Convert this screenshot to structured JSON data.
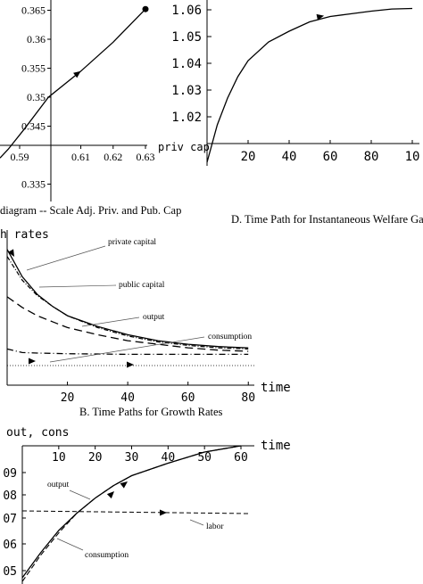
{
  "chart_data": [
    {
      "id": "scatter-top-left",
      "type": "line",
      "xlabel": "priv cap",
      "caption": "diagram -- Scale Adj. Priv. and Pub. Cap",
      "xticks": [
        "0.59",
        "0.61",
        "0.62",
        "0.63"
      ],
      "yticks": [
        "0.365",
        "0.36",
        "0.355",
        "0.35",
        "0.345",
        "0.335"
      ],
      "xlim": [
        0.585,
        0.63
      ],
      "ylim": [
        0.332,
        0.366
      ],
      "series": [
        {
          "x": [
            0.585,
            0.5875,
            0.5925,
            0.6,
            0.61,
            0.62,
            0.63
          ],
          "y": [
            0.3395,
            0.341,
            0.3445,
            0.35,
            0.3545,
            0.3595,
            0.3652
          ]
        }
      ],
      "color": "#000000"
    },
    {
      "id": "welfare-top-right",
      "type": "line",
      "caption": "D.  Time Path for Instantaneous Welfare Gai",
      "xticks": [
        "20",
        "40",
        "60",
        "80",
        "10"
      ],
      "yticks": [
        "1.06",
        "1.05",
        "1.04",
        "1.03",
        "1.02"
      ],
      "xlim": [
        0,
        100
      ],
      "ylim": [
        1.002,
        1.062
      ],
      "series": [
        {
          "x": [
            0,
            5,
            10,
            15,
            20,
            30,
            40,
            50,
            60,
            70,
            80,
            90,
            100
          ],
          "y": [
            1.003,
            1.017,
            1.027,
            1.035,
            1.041,
            1.048,
            1.052,
            1.0555,
            1.0575,
            1.0585,
            1.0595,
            1.0603,
            1.0605
          ]
        }
      ],
      "color": "#000000"
    },
    {
      "id": "growth-middle",
      "type": "line",
      "ylabel": "h rates",
      "xlabel": "time",
      "caption": "B.  Time Paths for Growth Rates",
      "xticks": [
        "20",
        "40",
        "60",
        "80"
      ],
      "xlim": [
        0,
        82
      ],
      "ylim": [
        0,
        1
      ],
      "annotations": [
        "private capital",
        "public capital",
        "output",
        "consumption"
      ],
      "series": [
        {
          "name": "private capital",
          "x": [
            0,
            5,
            10,
            15,
            20,
            30,
            40,
            50,
            60,
            70,
            80
          ],
          "y": [
            0.98,
            0.75,
            0.6,
            0.5,
            0.42,
            0.33,
            0.26,
            0.21,
            0.18,
            0.16,
            0.15
          ]
        },
        {
          "name": "public capital",
          "x": [
            0,
            5,
            10,
            15,
            20,
            30,
            40,
            50,
            60,
            70,
            80
          ],
          "y": [
            0.92,
            0.72,
            0.59,
            0.5,
            0.42,
            0.32,
            0.25,
            0.2,
            0.17,
            0.15,
            0.14
          ]
        },
        {
          "name": "output",
          "x": [
            0,
            5,
            10,
            15,
            20,
            30,
            40,
            50,
            60,
            70,
            80
          ],
          "y": [
            0.58,
            0.49,
            0.42,
            0.37,
            0.32,
            0.26,
            0.21,
            0.18,
            0.15,
            0.13,
            0.12
          ]
        },
        {
          "name": "consumption",
          "x": [
            0,
            5,
            10,
            20,
            40,
            60,
            80
          ],
          "y": [
            0.14,
            0.11,
            0.105,
            0.1,
            0.095,
            0.095,
            0.095
          ]
        }
      ],
      "color": "#000000"
    },
    {
      "id": "levels-bottom",
      "type": "line",
      "ylabel": "out, cons",
      "xlabel": "time",
      "xticks": [
        "10",
        "20",
        "30",
        "40",
        "50",
        "60"
      ],
      "yticks": [
        "09",
        "08",
        "07",
        "06",
        "05"
      ],
      "xlim": [
        0,
        60
      ],
      "ylim": [
        0.445,
        1.0
      ],
      "annotations": [
        "output",
        "consumption",
        "labor"
      ],
      "series": [
        {
          "name": "output",
          "x": [
            0,
            5,
            10,
            15,
            20,
            25,
            30,
            40,
            50,
            60
          ],
          "y": [
            0.47,
            0.57,
            0.66,
            0.73,
            0.79,
            0.84,
            0.88,
            0.93,
            0.975,
            1.0
          ]
        },
        {
          "name": "consumption",
          "x": [
            0,
            5,
            10,
            15,
            20,
            25,
            30,
            40,
            50,
            60
          ],
          "y": [
            0.455,
            0.56,
            0.65,
            0.73,
            0.79,
            0.84,
            0.88,
            0.93,
            0.975,
            1.0
          ]
        },
        {
          "name": "labor",
          "x": [
            0,
            60
          ],
          "y": [
            0.74,
            0.733
          ]
        }
      ],
      "color": "#000000"
    }
  ]
}
